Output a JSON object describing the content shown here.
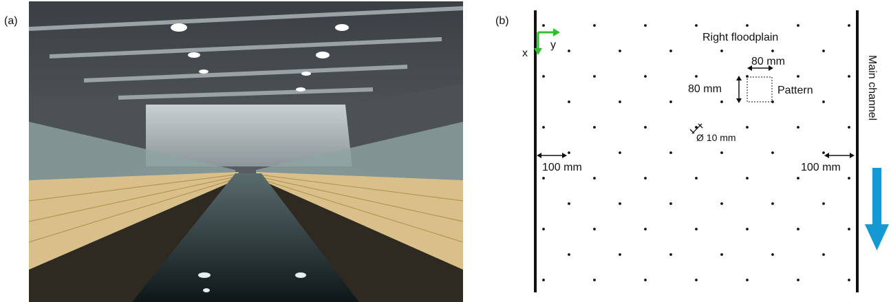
{
  "panels": {
    "a": {
      "label": "(a)"
    },
    "b": {
      "label": "(b)"
    }
  },
  "diagram": {
    "axis_x": "x",
    "axis_y": "y",
    "right_floodplain": "Right floodplain",
    "main_channel": "Main channel",
    "pattern": "Pattern",
    "spacing_horizontal": "80 mm",
    "spacing_vertical": "80 mm",
    "diameter": "Ø 10 mm",
    "edge_left": "100 mm",
    "edge_right": "100 mm",
    "colors": {
      "axis_arrows": "#2fbf2f",
      "flow_arrow": "#1499d3",
      "dots": "#111111"
    }
  },
  "photo": {
    "description_icon": "flume-photo"
  }
}
